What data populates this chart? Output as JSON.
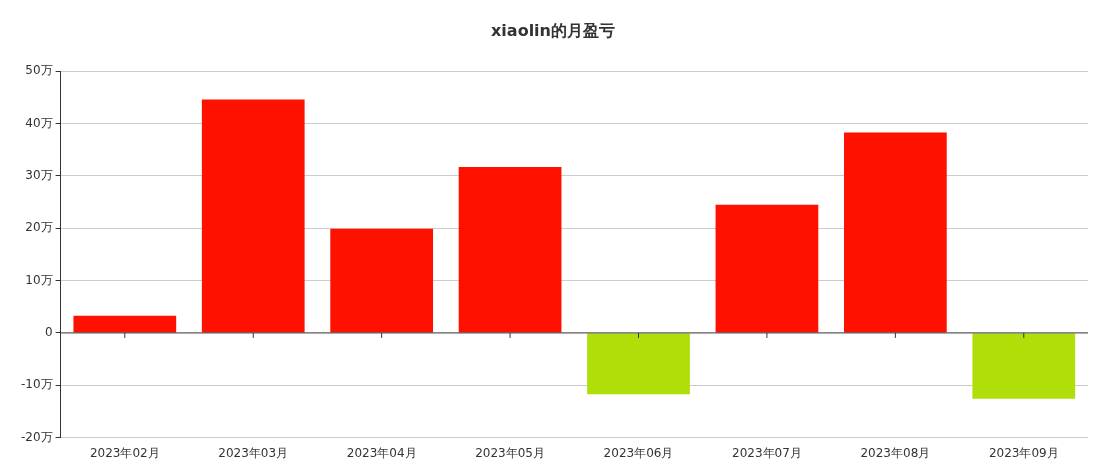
{
  "chart_data": {
    "type": "bar",
    "title": "xiaolin的月盈亏",
    "categories": [
      "2023年02月",
      "2023年03月",
      "2023年04月",
      "2023年05月",
      "2023年06月",
      "2023年07月",
      "2023年08月",
      "2023年09月"
    ],
    "values": [
      3.3,
      44.6,
      19.9,
      31.7,
      -11.7,
      24.5,
      38.3,
      -12.6
    ],
    "colors": [
      "#ff1100",
      "#ff1100",
      "#ff1100",
      "#ff1100",
      "#b0de09",
      "#ff1100",
      "#ff1100",
      "#b0de09"
    ],
    "ylim": [
      -20,
      50
    ],
    "yticks": [
      {
        "value": -20,
        "label": "-20万"
      },
      {
        "value": -10,
        "label": "-10万"
      },
      {
        "value": 0,
        "label": "0"
      },
      {
        "value": 10,
        "label": "10万"
      },
      {
        "value": 20,
        "label": "20万"
      },
      {
        "value": 30,
        "label": "30万"
      },
      {
        "value": 40,
        "label": "40万"
      },
      {
        "value": 50,
        "label": "50万"
      }
    ],
    "grid": "y",
    "legend": false
  }
}
